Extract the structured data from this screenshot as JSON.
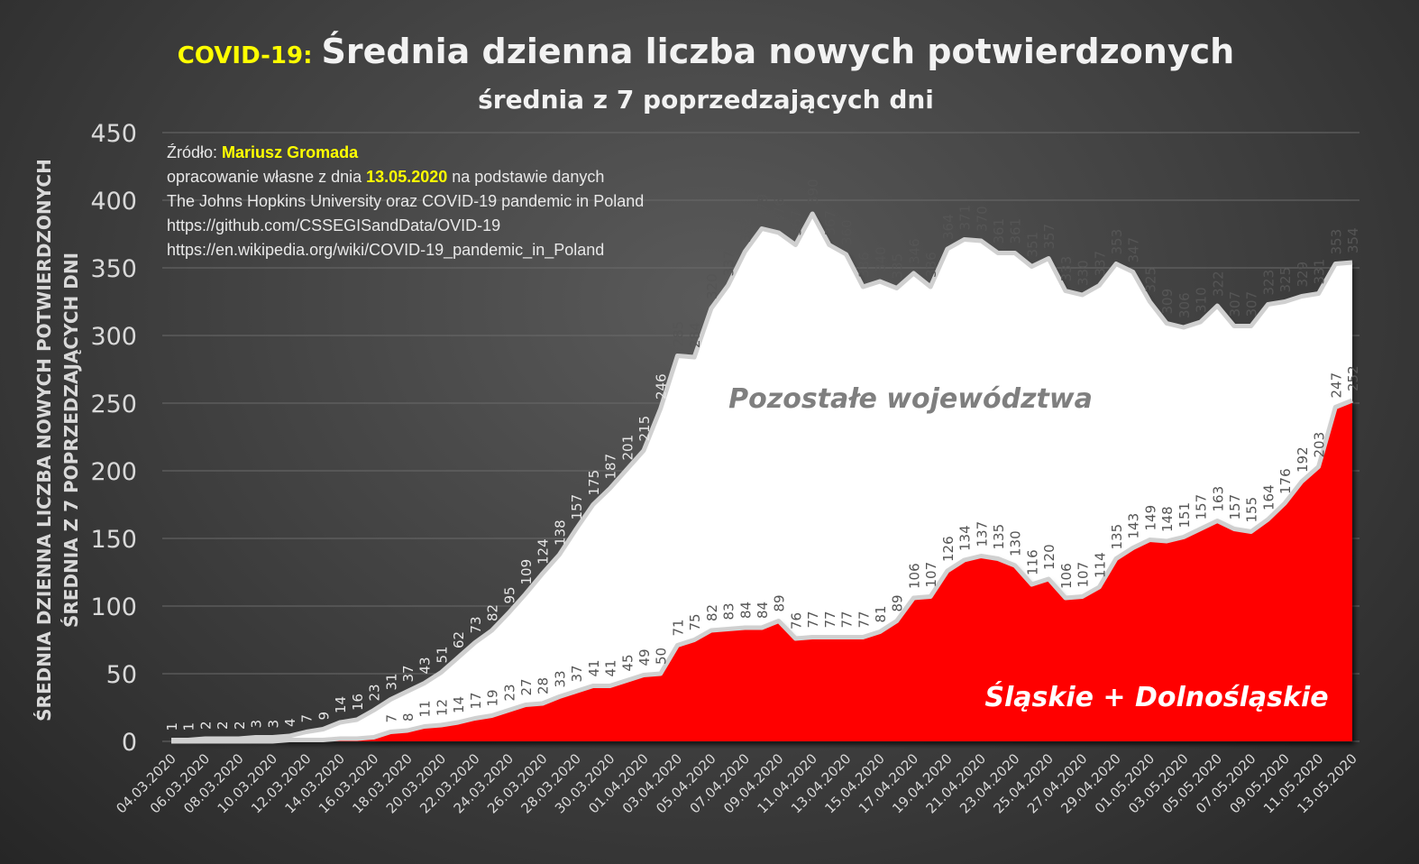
{
  "chart_data": {
    "type": "area",
    "title_prefix": "COVID-19:",
    "title": "Średnia dzienna liczba nowych potwierdzonych",
    "subtitle": "średnia z 7 poprzedzających dni",
    "ylabel_line1": "ŚREDNIA DZIENNA LICZBA NOWYCH POTWIERDZONYCH",
    "ylabel_line2": "ŚREDNIA Z 7 POPRZEDZAJĄCYCH DNI",
    "ylim": [
      0,
      450
    ],
    "yticks": [
      0,
      50,
      100,
      150,
      200,
      250,
      300,
      350,
      400,
      450
    ],
    "start_date": "04.03.2020",
    "xtick_labels": [
      "04.03.2020",
      "06.03.2020",
      "08.03.2020",
      "10.03.2020",
      "12.03.2020",
      "14.03.2020",
      "16.03.2020",
      "18.03.2020",
      "20.03.2020",
      "22.03.2020",
      "24.03.2020",
      "26.03.2020",
      "28.03.2020",
      "30.03.2020",
      "01.04.2020",
      "03.04.2020",
      "05.04.2020",
      "07.04.2020",
      "09.04.2020",
      "11.04.2020",
      "13.04.2020",
      "15.04.2020",
      "17.04.2020",
      "19.04.2020",
      "21.04.2020",
      "23.04.2020",
      "25.04.2020",
      "27.04.2020",
      "29.04.2020",
      "01.05.2020",
      "03.05.2020",
      "05.05.2020",
      "07.05.2020",
      "09.05.2020",
      "11.05.2020",
      "13.05.2020"
    ],
    "series": [
      {
        "name": "Pozostałe województwa",
        "color": "#ffffff",
        "label_start": 0,
        "values": [
          1,
          1,
          2,
          2,
          2,
          3,
          3,
          4,
          7,
          9,
          14,
          16,
          23,
          31,
          37,
          43,
          51,
          62,
          73,
          82,
          95,
          109,
          124,
          138,
          157,
          175,
          187,
          201,
          215,
          246,
          285,
          284,
          320,
          337,
          362,
          379,
          376,
          367,
          390,
          367,
          360,
          336,
          340,
          335,
          346,
          336,
          364,
          371,
          370,
          361,
          361,
          351,
          357,
          333,
          330,
          337,
          353,
          347,
          325,
          309,
          306,
          310,
          322,
          307,
          307,
          323,
          325,
          329,
          331,
          353,
          354
        ]
      },
      {
        "name": "Śląskie + Dolnośląskie",
        "color": "#ff0000",
        "label_start": 13,
        "values": [
          0,
          0,
          0,
          0,
          0,
          0,
          0,
          1,
          1,
          1,
          2,
          2,
          3,
          7,
          8,
          11,
          12,
          14,
          17,
          19,
          23,
          27,
          28,
          33,
          37,
          41,
          41,
          45,
          49,
          50,
          71,
          75,
          82,
          83,
          84,
          84,
          89,
          76,
          77,
          77,
          77,
          77,
          81,
          89,
          106,
          107,
          126,
          134,
          137,
          135,
          130,
          116,
          120,
          106,
          107,
          114,
          135,
          143,
          149,
          148,
          151,
          157,
          163,
          157,
          155,
          164,
          176,
          192,
          203,
          247,
          252
        ]
      }
    ],
    "source": {
      "label": "Źródło:",
      "author": "Mariusz Gromada",
      "line2_a": "opracowanie własne z dnia",
      "date": "13.05.2020",
      "line2_b": "na podstawie danych",
      "line3": "The Johns Hopkins University oraz COVID-19 pandemic in Poland",
      "line4": "https://github.com/CSSEGISandData/OVID-19",
      "line5": "https://en.wikipedia.org/wiki/COVID-19_pandemic_in_Poland"
    },
    "accent": "#ffff00"
  }
}
